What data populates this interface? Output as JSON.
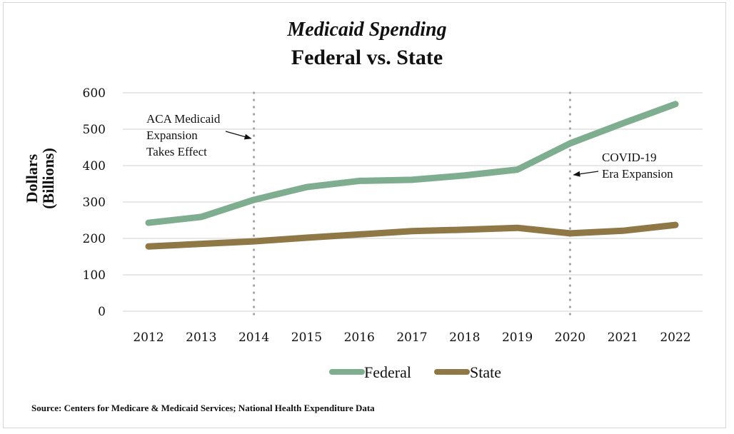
{
  "chart_data": {
    "type": "line",
    "title": "Medicaid Spending",
    "subtitle": "Federal vs. State",
    "xlabel": "",
    "ylabel": "Dollars (Billions)",
    "ylabel_lines": [
      "Dollars",
      "(Billions)"
    ],
    "ylim": [
      0,
      600
    ],
    "yticks": [
      0,
      100,
      200,
      300,
      400,
      500,
      600
    ],
    "ytick_labels": [
      "0",
      "100",
      "200",
      "300",
      "400",
      "500",
      "600"
    ],
    "grid": true,
    "categories": [
      "2012",
      "2013",
      "2014",
      "2015",
      "2016",
      "2017",
      "2018",
      "2019",
      "2020",
      "2021",
      "2022"
    ],
    "series": [
      {
        "name": "Federal",
        "color": "#7fad8f",
        "values": [
          243,
          259,
          306,
          341,
          358,
          361,
          373,
          389,
          461,
          516,
          569
        ]
      },
      {
        "name": "State",
        "color": "#8f7846",
        "values": [
          178,
          185,
          192,
          202,
          211,
          220,
          224,
          229,
          214,
          221,
          237
        ]
      }
    ],
    "annotations": [
      {
        "category": "2014",
        "lines": [
          "ACA Medicaid",
          "Expansion",
          "Takes Effect"
        ],
        "style": "dotted-vertical-line",
        "arrow": "points-right-to-line"
      },
      {
        "category": "2020",
        "lines": [
          "COVID-19",
          "Era Expansion"
        ],
        "style": "dotted-vertical-line",
        "arrow": "points-left-to-line"
      }
    ],
    "legend": {
      "placement": "bottom-center",
      "entries": [
        "Federal",
        "State"
      ]
    },
    "source": "Source: Centers for Medicare & Medicaid Services; National Health Expenditure Data"
  }
}
